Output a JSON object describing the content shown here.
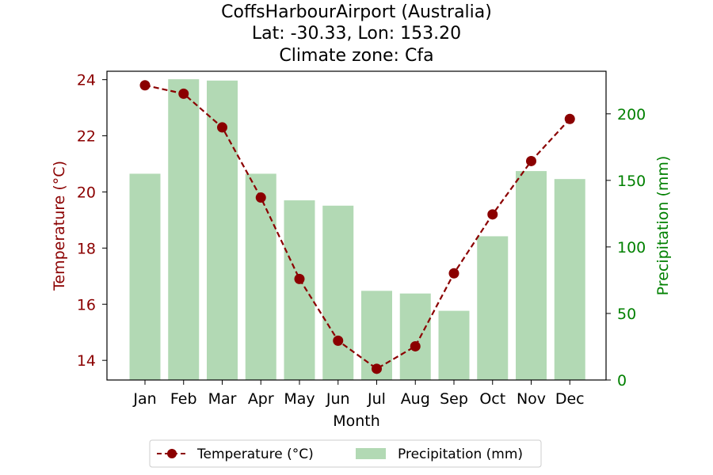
{
  "chart_data": {
    "type": "bar+line",
    "title": [
      "CoffsHarbourAirport (Australia)",
      "Lat: -30.33, Lon: 153.20",
      "Climate zone: Cfa"
    ],
    "xlabel": "Month",
    "categories": [
      "Jan",
      "Feb",
      "Mar",
      "Apr",
      "May",
      "Jun",
      "Jul",
      "Aug",
      "Sep",
      "Oct",
      "Nov",
      "Dec"
    ],
    "y_left": {
      "label": "Temperature (°C)",
      "color": "#8b0000",
      "lim": [
        13.3,
        24.3
      ],
      "ticks": [
        14,
        16,
        18,
        20,
        22,
        24
      ]
    },
    "y_right": {
      "label": "Precipitation (mm)",
      "color": "#008000",
      "lim": [
        0,
        232
      ],
      "ticks": [
        0,
        50,
        100,
        150,
        200
      ]
    },
    "series": [
      {
        "name": "Temperature (°C)",
        "kind": "line",
        "axis": "left",
        "color": "#8b0000",
        "style": "dashed-with-circle-markers",
        "values": [
          23.8,
          23.5,
          22.3,
          19.8,
          16.9,
          14.7,
          13.7,
          14.5,
          17.1,
          19.2,
          21.1,
          22.6
        ]
      },
      {
        "name": "Precipitation (mm)",
        "kind": "bar",
        "axis": "right",
        "color": "#b2d9b4",
        "values": [
          155,
          226,
          225,
          155,
          135,
          131,
          67,
          65,
          52,
          108,
          157,
          151
        ]
      }
    ],
    "legend_position": "bottom-center"
  }
}
